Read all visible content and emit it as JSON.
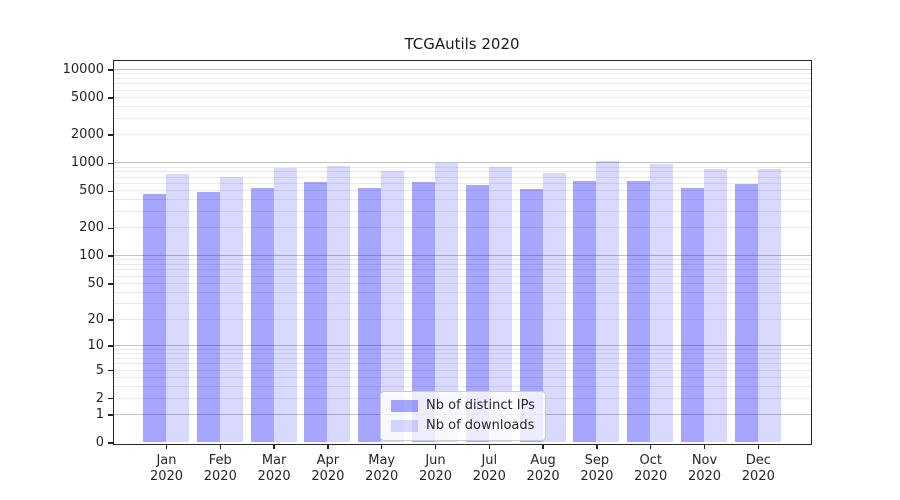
{
  "chart_data": {
    "type": "bar",
    "title": "TCGAutils 2020",
    "categories": [
      "Jan",
      "Feb",
      "Mar",
      "Apr",
      "May",
      "Jun",
      "Jul",
      "Aug",
      "Sep",
      "Oct",
      "Nov",
      "Dec"
    ],
    "year_label": "2020",
    "series": [
      {
        "name": "Nb of distinct IPs",
        "color": "rgba(0,0,255,0.35)",
        "color_hex": "#a6a6ff",
        "values": [
          465,
          490,
          530,
          620,
          540,
          625,
          575,
          520,
          645,
          640,
          530,
          595
        ]
      },
      {
        "name": "Nb of downloads",
        "color": "rgba(0,0,255,0.15)",
        "color_hex": "#d9d9ff",
        "values": [
          760,
          710,
          870,
          920,
          810,
          1000,
          895,
          780,
          1055,
          975,
          850,
          865
        ]
      }
    ],
    "y_ticks": [
      0,
      1,
      2,
      5,
      10,
      20,
      50,
      100,
      200,
      500,
      1000,
      2000,
      5000,
      10000
    ],
    "y_major_gridlines": [
      1,
      10,
      100,
      1000,
      10000
    ],
    "y_scale": "log10(value+1)",
    "ylim": [
      0,
      12500
    ],
    "xlabel": "",
    "ylabel": "",
    "grid": true,
    "legend_position": "lower center"
  },
  "colors": {
    "bar_dark": "rgba(0,0,255,0.35)",
    "bar_light": "rgba(0,0,255,0.15)",
    "major_grid": "#c2c2c2",
    "minor_grid": "#eaeaea",
    "spine": "#262626",
    "text": "#262626",
    "legend_border": "#cccccc",
    "legend_bg": "rgba(255,255,255,0.8)"
  }
}
